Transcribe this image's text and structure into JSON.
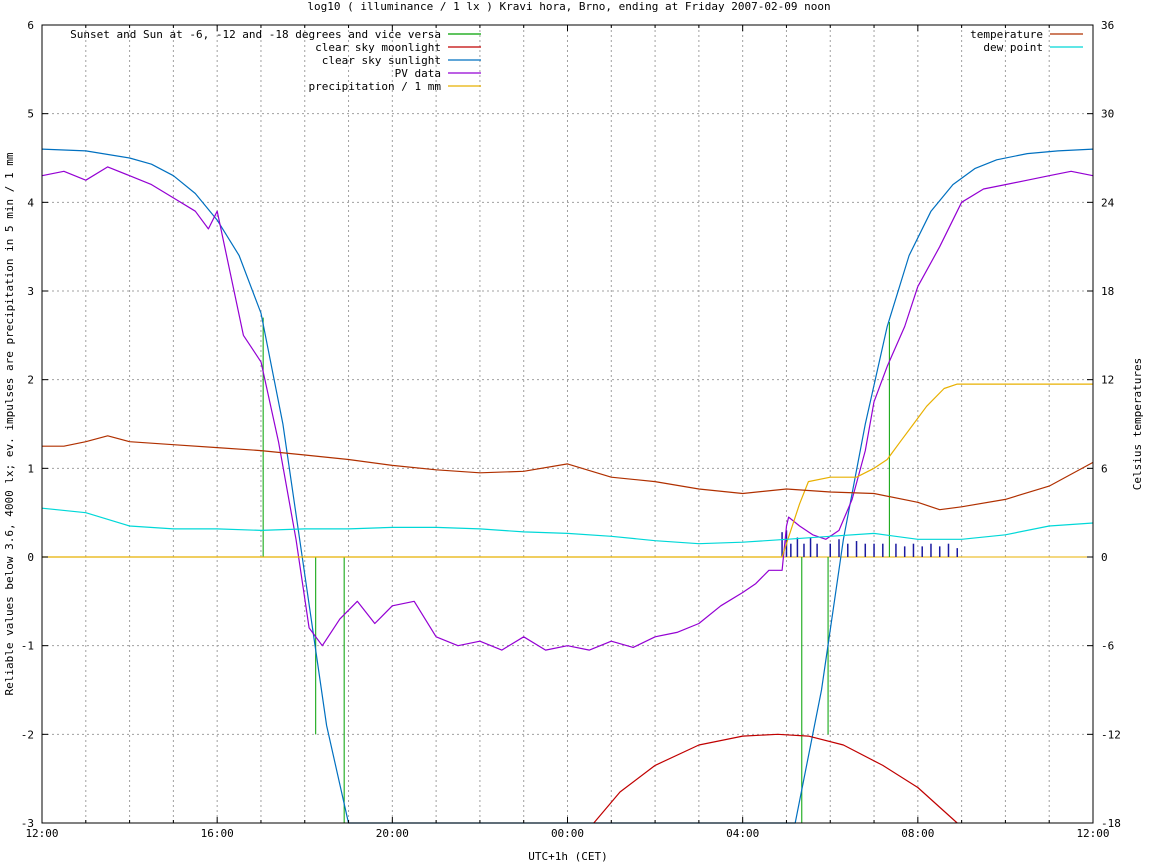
{
  "chart_data": {
    "type": "line",
    "title": "log10 ( illuminance / 1 lx ) Kravi hora, Brno, ending at Friday 2007-02-09 noon",
    "xlabel": "UTC+1h (CET)",
    "ylabel": "Reliable values below 3.6, 4000 lx; ev. impulses are precipitation in 5 min / 1 mm",
    "y2label": "Celsius temperatures",
    "xlim": [
      0,
      24
    ],
    "ylim": [
      -3,
      6
    ],
    "y2lim": [
      -18,
      36
    ],
    "grid": true,
    "x_ticks": [
      "12:00",
      "16:00",
      "20:00",
      "00:00",
      "04:00",
      "08:00",
      "12:00"
    ],
    "y_ticks": [
      "-3",
      "-2",
      "-1",
      "0",
      "1",
      "2",
      "3",
      "4",
      "5",
      "6"
    ],
    "y2_ticks": [
      "-18",
      "-12",
      "-6",
      "0",
      "6",
      "12",
      "18",
      "24",
      "30",
      "36"
    ],
    "legend_left": [
      {
        "label": "Sunset and Sun at -6, -12 and -18 degrees and vice versa",
        "color": "#00a000"
      },
      {
        "label": "clear sky moonlight",
        "color": "#c00000"
      },
      {
        "label": "clear sky sunlight",
        "color": "#0070c0"
      },
      {
        "label": "PV data",
        "color": "#9400d3"
      },
      {
        "label": "precipitation / 1 mm",
        "color": "#e8b000"
      }
    ],
    "legend_right": [
      {
        "label": "temperature",
        "color": "#b03000"
      },
      {
        "label": "dew point",
        "color": "#00d8d8"
      }
    ],
    "twilight_markers": [
      {
        "x": 5.05,
        "y": 2.7
      },
      {
        "x": 5.65,
        "y": 0
      },
      {
        "x": 6.25,
        "y": -2.0
      },
      {
        "x": 6.9,
        "y": -3.0
      },
      {
        "x": 17.35,
        "y": -3.0
      },
      {
        "x": 17.95,
        "y": -2.0
      },
      {
        "x": 19.35,
        "y": 2.65
      }
    ],
    "series": [
      {
        "name": "clear sky sunlight",
        "x": [
          0,
          1,
          2,
          2.5,
          3,
          3.5,
          4,
          4.5,
          5,
          5.5,
          6,
          6.5,
          7.0,
          17.2,
          17.8,
          18.3,
          18.8,
          19.3,
          19.8,
          20.3,
          20.8,
          21.3,
          21.8,
          22.5,
          23.2,
          24
        ],
        "y": [
          4.6,
          4.58,
          4.5,
          4.43,
          4.3,
          4.1,
          3.8,
          3.4,
          2.75,
          1.5,
          -0.2,
          -1.9,
          -3.0,
          -3.0,
          -1.5,
          0.2,
          1.5,
          2.6,
          3.4,
          3.9,
          4.2,
          4.38,
          4.48,
          4.55,
          4.58,
          4.6
        ]
      },
      {
        "name": "clear sky moonlight",
        "x": [
          12.6,
          13.2,
          14.0,
          15.0,
          16.0,
          16.8,
          17.5,
          18.3,
          19.2,
          20.0,
          20.9
        ],
        "y": [
          -3.0,
          -2.65,
          -2.35,
          -2.12,
          -2.02,
          -2.0,
          -2.02,
          -2.12,
          -2.35,
          -2.6,
          -3.0
        ]
      },
      {
        "name": "PV data",
        "x": [
          0,
          0.5,
          1,
          1.5,
          2,
          2.5,
          3,
          3.5,
          3.8,
          4.0,
          4.3,
          4.6,
          5.0,
          5.4,
          5.8,
          6.1,
          6.4,
          6.8,
          7.2,
          7.6,
          8.0,
          8.5,
          9.0,
          9.5,
          10.0,
          10.5,
          11.0,
          11.5,
          12.0,
          12.5,
          13.0,
          13.5,
          14.0,
          14.5,
          15.0,
          15.5,
          16.0,
          16.3,
          16.6,
          16.9,
          17.0,
          17.05,
          17.3,
          17.6,
          17.9,
          18.2,
          18.5,
          18.8,
          19.0,
          19.3,
          19.7,
          20.0,
          20.5,
          21.0,
          21.5,
          22.0,
          22.5,
          23.0,
          23.5,
          24.0
        ],
        "y": [
          4.3,
          4.35,
          4.25,
          4.4,
          4.3,
          4.2,
          4.05,
          3.9,
          3.7,
          3.9,
          3.2,
          2.5,
          2.2,
          1.3,
          0.2,
          -0.8,
          -1.0,
          -0.7,
          -0.5,
          -0.75,
          -0.55,
          -0.5,
          -0.9,
          -1.0,
          -0.95,
          -1.05,
          -0.9,
          -1.05,
          -1.0,
          -1.05,
          -0.95,
          -1.02,
          -0.9,
          -0.85,
          -0.75,
          -0.55,
          -0.4,
          -0.3,
          -0.15,
          -0.15,
          0.35,
          0.45,
          0.35,
          0.25,
          0.2,
          0.3,
          0.65,
          1.2,
          1.75,
          2.15,
          2.6,
          3.05,
          3.5,
          4.0,
          4.15,
          4.2,
          4.25,
          4.3,
          4.35,
          4.3
        ]
      },
      {
        "name": "precipitation / 1 mm",
        "x": [
          0,
          16.9,
          17.1,
          17.3,
          17.5,
          18.0,
          18.6,
          19.0,
          19.3,
          19.6,
          19.9,
          20.2,
          20.6,
          20.9,
          24
        ],
        "y": [
          0,
          0,
          0.3,
          0.6,
          0.85,
          0.9,
          0.9,
          1.0,
          1.1,
          1.3,
          1.5,
          1.7,
          1.9,
          1.95,
          1.95
        ]
      },
      {
        "name": "temperature",
        "y_axis": "right",
        "x": [
          0,
          0.5,
          1,
          1.5,
          2,
          3,
          4,
          5,
          6,
          7,
          8,
          9,
          10,
          11,
          12,
          13,
          14,
          15,
          16,
          17,
          18,
          19,
          20,
          20.5,
          21,
          22,
          23,
          24
        ],
        "y": [
          7.5,
          7.5,
          7.8,
          8.2,
          7.8,
          7.6,
          7.4,
          7.2,
          6.9,
          6.6,
          6.2,
          5.9,
          5.7,
          5.8,
          6.3,
          5.4,
          5.1,
          4.6,
          4.3,
          4.6,
          4.4,
          4.3,
          3.7,
          3.2,
          3.4,
          3.9,
          4.8,
          6.4
        ]
      },
      {
        "name": "dew point",
        "y_axis": "right",
        "x": [
          0,
          1,
          2,
          3,
          4,
          5,
          6,
          7,
          8,
          9,
          10,
          11,
          12,
          13,
          14,
          15,
          16,
          17,
          18,
          19,
          20,
          21,
          22,
          23,
          24
        ],
        "y": [
          3.3,
          3.0,
          2.1,
          1.9,
          1.9,
          1.8,
          1.9,
          1.9,
          2.0,
          2.0,
          1.9,
          1.7,
          1.6,
          1.4,
          1.1,
          0.9,
          1.0,
          1.2,
          1.4,
          1.6,
          1.2,
          1.2,
          1.5,
          2.1,
          2.3
        ]
      }
    ],
    "precip_impulses": {
      "color": "#1a1aa0",
      "x": [
        16.9,
        17.0,
        17.1,
        17.25,
        17.4,
        17.55,
        17.7,
        18.0,
        18.2,
        18.4,
        18.6,
        18.8,
        19.0,
        19.2,
        19.5,
        19.7,
        19.9,
        20.1,
        20.3,
        20.5,
        20.7,
        20.9
      ],
      "y": [
        0.28,
        0.3,
        0.15,
        0.22,
        0.15,
        0.22,
        0.15,
        0.15,
        0.2,
        0.15,
        0.18,
        0.15,
        0.15,
        0.15,
        0.15,
        0.12,
        0.15,
        0.12,
        0.15,
        0.12,
        0.15,
        0.1
      ]
    }
  }
}
